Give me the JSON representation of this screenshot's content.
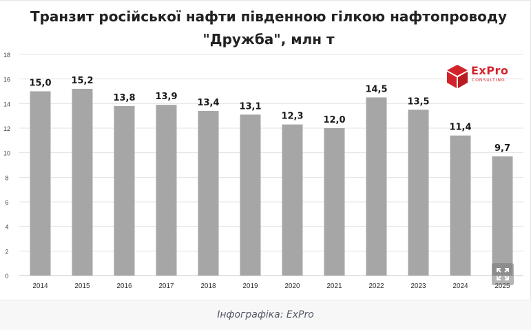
{
  "chart_data": {
    "type": "bar",
    "title": "Транзит російської нафти південною гілкою нафтопроводу \"Дружба\", млн т",
    "categories": [
      "2014",
      "2015",
      "2016",
      "2017",
      "2018",
      "2019",
      "2020",
      "2021",
      "2022",
      "2023",
      "2024",
      "2025"
    ],
    "values": [
      15.0,
      15.2,
      13.8,
      13.9,
      13.4,
      13.1,
      12.3,
      12.0,
      14.5,
      13.5,
      11.4,
      9.7
    ],
    "value_labels": [
      "15,0",
      "15,2",
      "13,8",
      "13,9",
      "13,4",
      "13,1",
      "12,3",
      "12,0",
      "14,5",
      "13,5",
      "11,4",
      "9,7"
    ],
    "ylim": [
      0,
      18
    ],
    "yticks": [
      0,
      2,
      4,
      6,
      8,
      10,
      12,
      14,
      16,
      18
    ],
    "grid": true,
    "bar_color": "#a6a6a6",
    "legend": "none"
  },
  "logo": {
    "name": "ExPro",
    "subtitle": "CONSULTING",
    "color": "#d2232a",
    "icon": "cube-icon"
  },
  "expand_icon": "expand-icon",
  "caption": "Інфографіка: ExPro"
}
